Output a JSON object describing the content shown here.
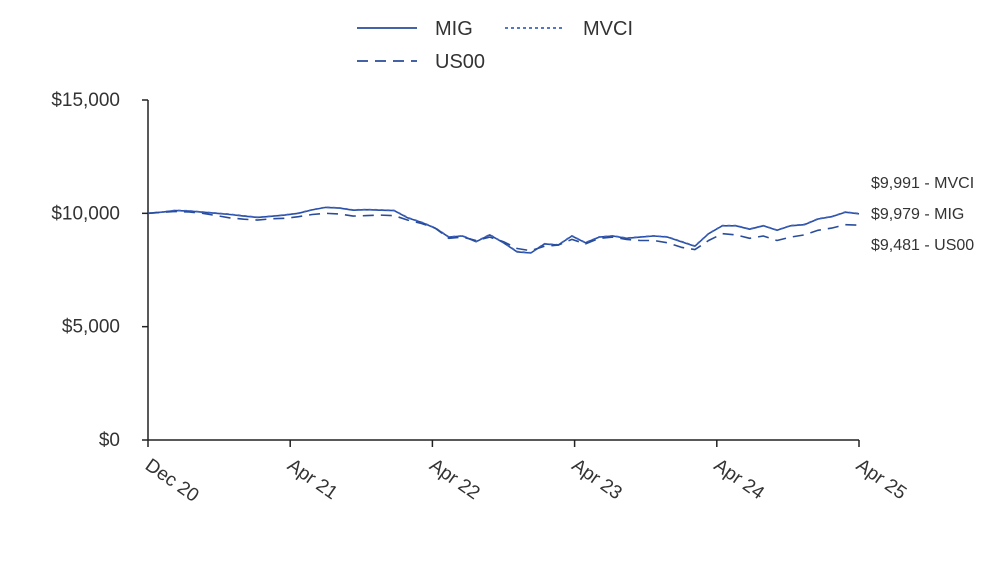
{
  "chart_data": {
    "type": "line",
    "title": "",
    "xlabel": "",
    "ylabel": "",
    "x_ticks": [
      "Dec 20",
      "Apr 21",
      "Apr 22",
      "Apr 23",
      "Apr 24",
      "Apr 25"
    ],
    "y_ticks": [
      "$0",
      "$5,000",
      "$10,000",
      "$15,000"
    ],
    "ylim": [
      0,
      15000
    ],
    "xlim": [
      0,
      52
    ],
    "legend": {
      "placement": "top"
    },
    "series": [
      {
        "name": "MIG",
        "style": "solid",
        "color": "#2a4d9b",
        "end_label": "$9,979 - MIG",
        "values": [
          [
            0,
            10000
          ],
          [
            1,
            10050
          ],
          [
            2,
            10120
          ],
          [
            3,
            10100
          ],
          [
            4,
            10050
          ],
          [
            5,
            10000
          ],
          [
            6,
            9950
          ],
          [
            7,
            9880
          ],
          [
            8,
            9820
          ],
          [
            9,
            9870
          ],
          [
            10,
            9920
          ],
          [
            11,
            10000
          ],
          [
            12,
            10150
          ],
          [
            13,
            10260
          ],
          [
            14,
            10230
          ],
          [
            15,
            10140
          ],
          [
            16,
            10160
          ],
          [
            17,
            10140
          ],
          [
            18,
            10120
          ],
          [
            19,
            9800
          ],
          [
            20,
            9600
          ],
          [
            21,
            9350
          ],
          [
            22,
            8950
          ],
          [
            23,
            9000
          ],
          [
            24,
            8750
          ],
          [
            25,
            9050
          ],
          [
            26,
            8700
          ],
          [
            27,
            8300
          ],
          [
            28,
            8250
          ],
          [
            29,
            8650
          ],
          [
            30,
            8600
          ],
          [
            31,
            9000
          ],
          [
            32,
            8700
          ],
          [
            33,
            8950
          ],
          [
            34,
            9000
          ],
          [
            35,
            8900
          ],
          [
            36,
            8950
          ],
          [
            37,
            9000
          ],
          [
            38,
            8950
          ],
          [
            39,
            8750
          ],
          [
            40,
            8550
          ],
          [
            41,
            9100
          ],
          [
            42,
            9450
          ],
          [
            43,
            9450
          ],
          [
            44,
            9300
          ],
          [
            45,
            9450
          ],
          [
            46,
            9250
          ],
          [
            47,
            9450
          ],
          [
            48,
            9500
          ],
          [
            49,
            9750
          ],
          [
            50,
            9850
          ],
          [
            51,
            10050
          ],
          [
            52,
            9979
          ]
        ]
      },
      {
        "name": "MVCI",
        "style": "dotted",
        "color": "#3b63c4",
        "end_label": "$9,991 - MVCI",
        "values": [
          [
            0,
            10000
          ],
          [
            1,
            10060
          ],
          [
            2,
            10130
          ],
          [
            3,
            10110
          ],
          [
            4,
            10060
          ],
          [
            5,
            10010
          ],
          [
            6,
            9960
          ],
          [
            7,
            9890
          ],
          [
            8,
            9830
          ],
          [
            9,
            9880
          ],
          [
            10,
            9930
          ],
          [
            11,
            10010
          ],
          [
            12,
            10160
          ],
          [
            13,
            10270
          ],
          [
            14,
            10240
          ],
          [
            15,
            10150
          ],
          [
            16,
            10170
          ],
          [
            17,
            10150
          ],
          [
            18,
            10130
          ],
          [
            19,
            9810
          ],
          [
            20,
            9610
          ],
          [
            21,
            9360
          ],
          [
            22,
            8960
          ],
          [
            23,
            9010
          ],
          [
            24,
            8760
          ],
          [
            25,
            9060
          ],
          [
            26,
            8710
          ],
          [
            27,
            8310
          ],
          [
            28,
            8260
          ],
          [
            29,
            8660
          ],
          [
            30,
            8610
          ],
          [
            31,
            9010
          ],
          [
            32,
            8710
          ],
          [
            33,
            8960
          ],
          [
            34,
            9010
          ],
          [
            35,
            8910
          ],
          [
            36,
            8960
          ],
          [
            37,
            9010
          ],
          [
            38,
            8960
          ],
          [
            39,
            8760
          ],
          [
            40,
            8560
          ],
          [
            41,
            9110
          ],
          [
            42,
            9460
          ],
          [
            43,
            9460
          ],
          [
            44,
            9310
          ],
          [
            45,
            9460
          ],
          [
            46,
            9260
          ],
          [
            47,
            9460
          ],
          [
            48,
            9510
          ],
          [
            49,
            9760
          ],
          [
            50,
            9860
          ],
          [
            51,
            10060
          ],
          [
            52,
            9991
          ]
        ]
      },
      {
        "name": "US00",
        "style": "dashed",
        "color": "#2a4d9b",
        "end_label": "$9,481 - US00",
        "values": [
          [
            0,
            10000
          ],
          [
            1,
            10040
          ],
          [
            2,
            10080
          ],
          [
            3,
            10060
          ],
          [
            4,
            10000
          ],
          [
            5,
            9900
          ],
          [
            6,
            9800
          ],
          [
            7,
            9740
          ],
          [
            8,
            9700
          ],
          [
            9,
            9760
          ],
          [
            10,
            9780
          ],
          [
            11,
            9850
          ],
          [
            12,
            9950
          ],
          [
            13,
            10000
          ],
          [
            14,
            9970
          ],
          [
            15,
            9880
          ],
          [
            16,
            9900
          ],
          [
            17,
            9920
          ],
          [
            18,
            9900
          ],
          [
            19,
            9700
          ],
          [
            20,
            9550
          ],
          [
            21,
            9350
          ],
          [
            22,
            8900
          ],
          [
            23,
            8950
          ],
          [
            24,
            8800
          ],
          [
            25,
            8950
          ],
          [
            26,
            8750
          ],
          [
            27,
            8450
          ],
          [
            28,
            8350
          ],
          [
            29,
            8550
          ],
          [
            30,
            8600
          ],
          [
            31,
            8850
          ],
          [
            32,
            8650
          ],
          [
            33,
            8900
          ],
          [
            34,
            8950
          ],
          [
            35,
            8850
          ],
          [
            36,
            8800
          ],
          [
            37,
            8800
          ],
          [
            38,
            8700
          ],
          [
            39,
            8500
          ],
          [
            40,
            8400
          ],
          [
            41,
            8800
          ],
          [
            42,
            9100
          ],
          [
            43,
            9050
          ],
          [
            44,
            8900
          ],
          [
            45,
            9000
          ],
          [
            46,
            8800
          ],
          [
            47,
            8950
          ],
          [
            48,
            9050
          ],
          [
            49,
            9250
          ],
          [
            50,
            9350
          ],
          [
            51,
            9500
          ],
          [
            52,
            9481
          ]
        ]
      }
    ]
  }
}
